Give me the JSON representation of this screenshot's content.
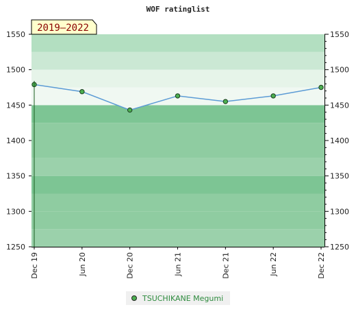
{
  "chart_data": {
    "type": "line",
    "title": "WOF ratinglist",
    "period_label": "2019–2022",
    "categories": [
      "Dec 19",
      "Jun 20",
      "Dec 20",
      "Jun 21",
      "Dec 21",
      "Jun 22",
      "Dec 22"
    ],
    "series": [
      {
        "name": "TSUCHIKANE Megumi",
        "values": [
          1479,
          1469,
          1443,
          1463,
          1455,
          1463,
          1475
        ]
      }
    ],
    "ylim": [
      1250,
      1550
    ],
    "yticks": [
      1250,
      1300,
      1350,
      1400,
      1450,
      1500,
      1550
    ],
    "legend_position": "bottom-center",
    "colors": {
      "line": "#5b9bd5",
      "marker": "#4caf50",
      "area": "#f0f8f2",
      "legend_bg": "#f0f0f0"
    }
  }
}
